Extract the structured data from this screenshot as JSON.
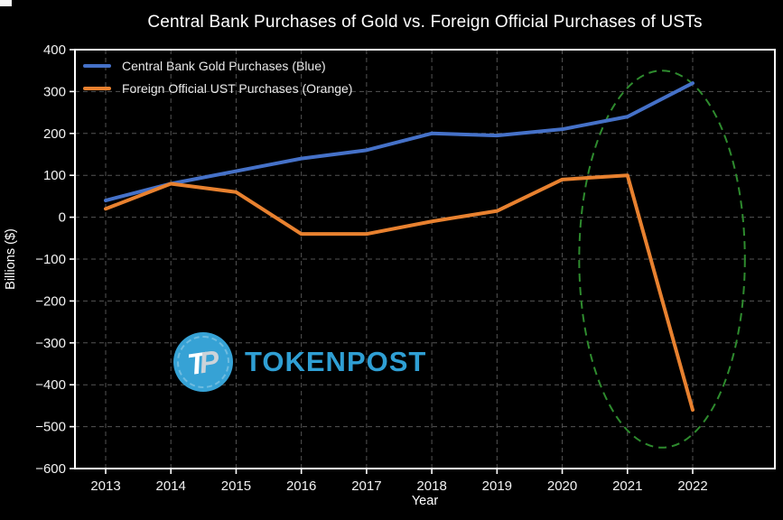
{
  "title": "Central Bank Purchases of Gold vs. Foreign Official Purchases of USTs",
  "colors": {
    "background": "#000000",
    "spine": "#ffffff",
    "grid": "#545454",
    "gold_line_blue": "#4571c8",
    "ust_line_orange": "#e8812f",
    "annotation_green": "#2e8b2e",
    "tick_text": "#f2f2f2",
    "watermark_circle_blue": "#36a2d5",
    "watermark_brand_blue": "#2f9fd4"
  },
  "watermark": {
    "brand": "TOKENPOST",
    "monogram_t": "T",
    "monogram_p": "P"
  },
  "chart_data": {
    "type": "line",
    "title": "Central Bank Purchases of Gold vs. Foreign Official Purchases of USTs",
    "xlabel": "Year",
    "ylabel": "Billions ($)",
    "x": [
      2013,
      2014,
      2015,
      2016,
      2017,
      2018,
      2019,
      2020,
      2021,
      2022
    ],
    "series": [
      {
        "name": "Central Bank Gold Purchases (Blue)",
        "color": "#4571c8",
        "values": [
          40,
          80,
          110,
          140,
          160,
          200,
          195,
          210,
          240,
          320
        ]
      },
      {
        "name": "Foreign Official UST Purchases (Orange)",
        "color": "#e8812f",
        "values": [
          20,
          80,
          60,
          -40,
          -40,
          -10,
          15,
          90,
          100,
          -460
        ]
      }
    ],
    "ylim": [
      -600,
      400
    ],
    "yticks": [
      400,
      300,
      200,
      100,
      0,
      -100,
      -200,
      -300,
      -400,
      -500,
      -600
    ],
    "grid": true,
    "legend_position": "upper-left",
    "annotation_ellipse": {
      "x_center": 2021.53,
      "y_center": -100,
      "x_radius": 1.27,
      "y_radius": 450,
      "style": "dashed"
    }
  }
}
